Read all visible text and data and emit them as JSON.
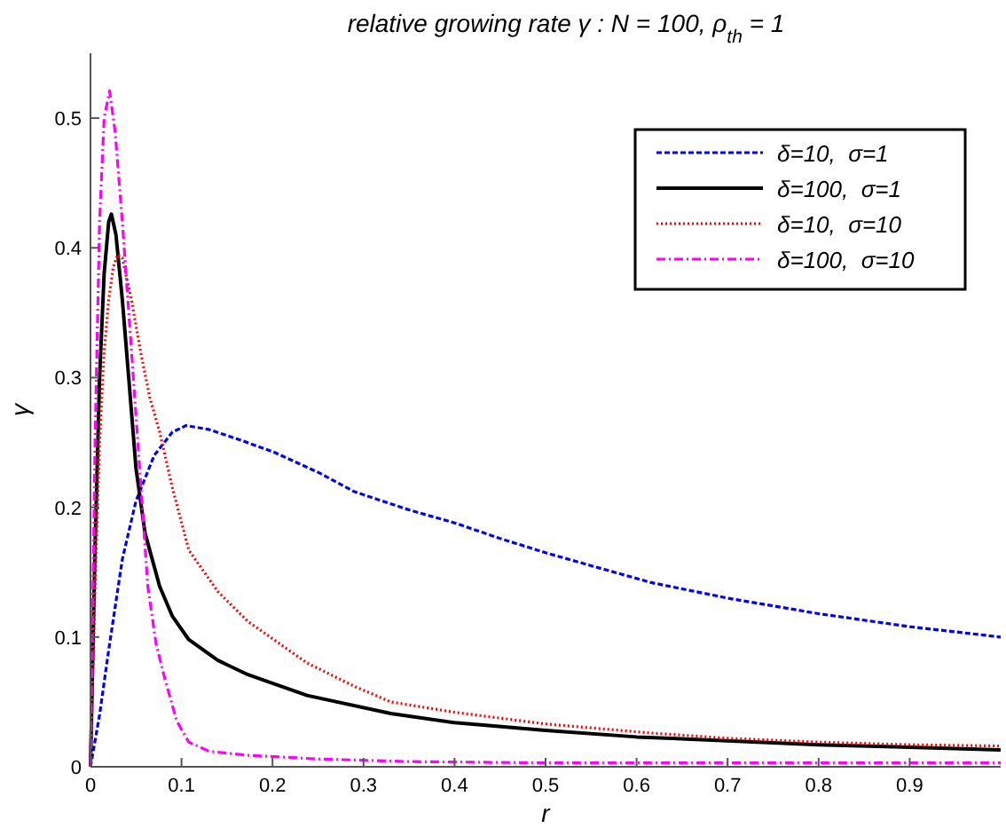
{
  "chart_data": {
    "type": "line",
    "title": "relative growing rate γ :  N = 100, ρ$_{th}$ = 1",
    "xlabel": "r",
    "ylabel": "γ",
    "xlim": [
      0,
      1
    ],
    "ylim": [
      0,
      0.55
    ],
    "xticks": [
      0,
      0.1,
      0.2,
      0.3,
      0.4,
      0.5,
      0.6,
      0.7,
      0.8,
      0.9
    ],
    "yticks": [
      0,
      0.1,
      0.2,
      0.3,
      0.4,
      0.5
    ],
    "grid": false,
    "legend": "top right",
    "series": [
      {
        "name": "δ=10,  σ=1",
        "color": "#0000ff",
        "line_style": "dashed",
        "x": [
          0,
          0.01,
          0.02,
          0.035,
          0.05,
          0.07,
          0.09,
          0.105,
          0.13,
          0.16,
          0.2,
          0.25,
          0.29,
          0.35,
          0.4,
          0.45,
          0.5,
          0.55,
          0.616,
          0.7,
          0.8,
          0.9,
          1.0
        ],
        "values": [
          0,
          0.04,
          0.09,
          0.16,
          0.205,
          0.24,
          0.258,
          0.263,
          0.26,
          0.253,
          0.243,
          0.227,
          0.212,
          0.198,
          0.188,
          0.176,
          0.165,
          0.155,
          0.142,
          0.13,
          0.118,
          0.108,
          0.1
        ]
      },
      {
        "name": "δ=100,  σ=1",
        "color": "#000000",
        "line_style": "solid",
        "x": [
          0,
          0.005,
          0.01,
          0.015,
          0.02,
          0.023,
          0.028,
          0.035,
          0.042,
          0.05,
          0.06,
          0.076,
          0.09,
          0.108,
          0.14,
          0.173,
          0.238,
          0.33,
          0.4,
          0.5,
          0.6,
          0.7,
          0.8,
          0.9,
          1.0
        ],
        "values": [
          0,
          0.17,
          0.3,
          0.38,
          0.42,
          0.426,
          0.41,
          0.36,
          0.3,
          0.23,
          0.18,
          0.139,
          0.116,
          0.098,
          0.082,
          0.071,
          0.055,
          0.041,
          0.034,
          0.028,
          0.023,
          0.02,
          0.017,
          0.015,
          0.013
        ]
      },
      {
        "name": "δ=10,  σ=10",
        "color": "#ff0000",
        "line_style": "dotted",
        "x": [
          0,
          0.005,
          0.01,
          0.015,
          0.02,
          0.025,
          0.03,
          0.035,
          0.045,
          0.055,
          0.065,
          0.076,
          0.09,
          0.108,
          0.14,
          0.173,
          0.238,
          0.29,
          0.33,
          0.4,
          0.5,
          0.616,
          0.7,
          0.8,
          0.9,
          1.0
        ],
        "values": [
          0,
          0.14,
          0.25,
          0.32,
          0.36,
          0.385,
          0.395,
          0.392,
          0.36,
          0.32,
          0.285,
          0.258,
          0.215,
          0.167,
          0.135,
          0.112,
          0.08,
          0.062,
          0.05,
          0.042,
          0.033,
          0.026,
          0.022,
          0.019,
          0.017,
          0.016
        ]
      },
      {
        "name": "δ=100,  σ=10",
        "color": "#ff00ff",
        "line_style": "dashdot",
        "x": [
          0,
          0.005,
          0.01,
          0.015,
          0.021,
          0.027,
          0.035,
          0.045,
          0.055,
          0.063,
          0.072,
          0.082,
          0.095,
          0.108,
          0.13,
          0.17,
          0.25,
          0.35,
          0.5,
          0.7,
          1.0
        ],
        "values": [
          0,
          0.25,
          0.42,
          0.5,
          0.521,
          0.49,
          0.42,
          0.321,
          0.22,
          0.139,
          0.095,
          0.067,
          0.035,
          0.019,
          0.012,
          0.009,
          0.006,
          0.004,
          0.003,
          0.003,
          0.003
        ]
      }
    ]
  }
}
